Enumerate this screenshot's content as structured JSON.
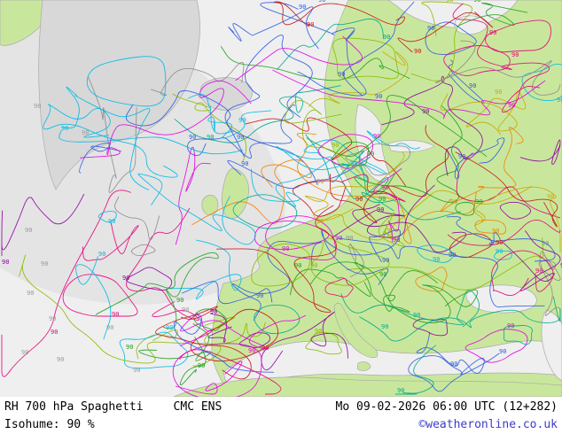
{
  "footer": {
    "product": "RH 700 hPa Spaghetti",
    "model": "CMC ENS",
    "datetime": "Mo 09-02-2026 06:00 UTC (12+282)",
    "isohume": "Isohume: 90 %",
    "copyright": "©weatheronline.co.uk",
    "copyright_color": "#3c3cc8"
  },
  "map": {
    "contour_label": "90",
    "sea": "#efefef",
    "sea_deep": "#e4e4e4",
    "land": "#c9e79c",
    "gray_land": "#d8d8d8",
    "coast": "#aaaaaa",
    "label_gray": "#9a9a9a",
    "member_colors": [
      "#8c00a0",
      "#e100e1",
      "#e6007d",
      "#c81414",
      "#f08200",
      "#c8aa00",
      "#8cb900",
      "#1ea01e",
      "#00aa8c",
      "#00b9e6",
      "#2d5ae1",
      "#8c8c8c"
    ]
  },
  "chart_data": {
    "type": "map",
    "product": "RH 700 hPa Spaghetti",
    "model": "CMC ENS",
    "valid": "Mo 09-02-2026 06:00 UTC (12+282)",
    "isohume_label": "Isohume: 90 %",
    "contour_value_percent": 90,
    "region_shown": "Europe / North Atlantic",
    "ensemble_member_colors": [
      "#8c00a0",
      "#e100e1",
      "#e6007d",
      "#c81414",
      "#f08200",
      "#c8aa00",
      "#8cb900",
      "#1ea01e",
      "#00aa8c",
      "#00b9e6",
      "#2d5ae1",
      "#8c8c8c"
    ]
  }
}
